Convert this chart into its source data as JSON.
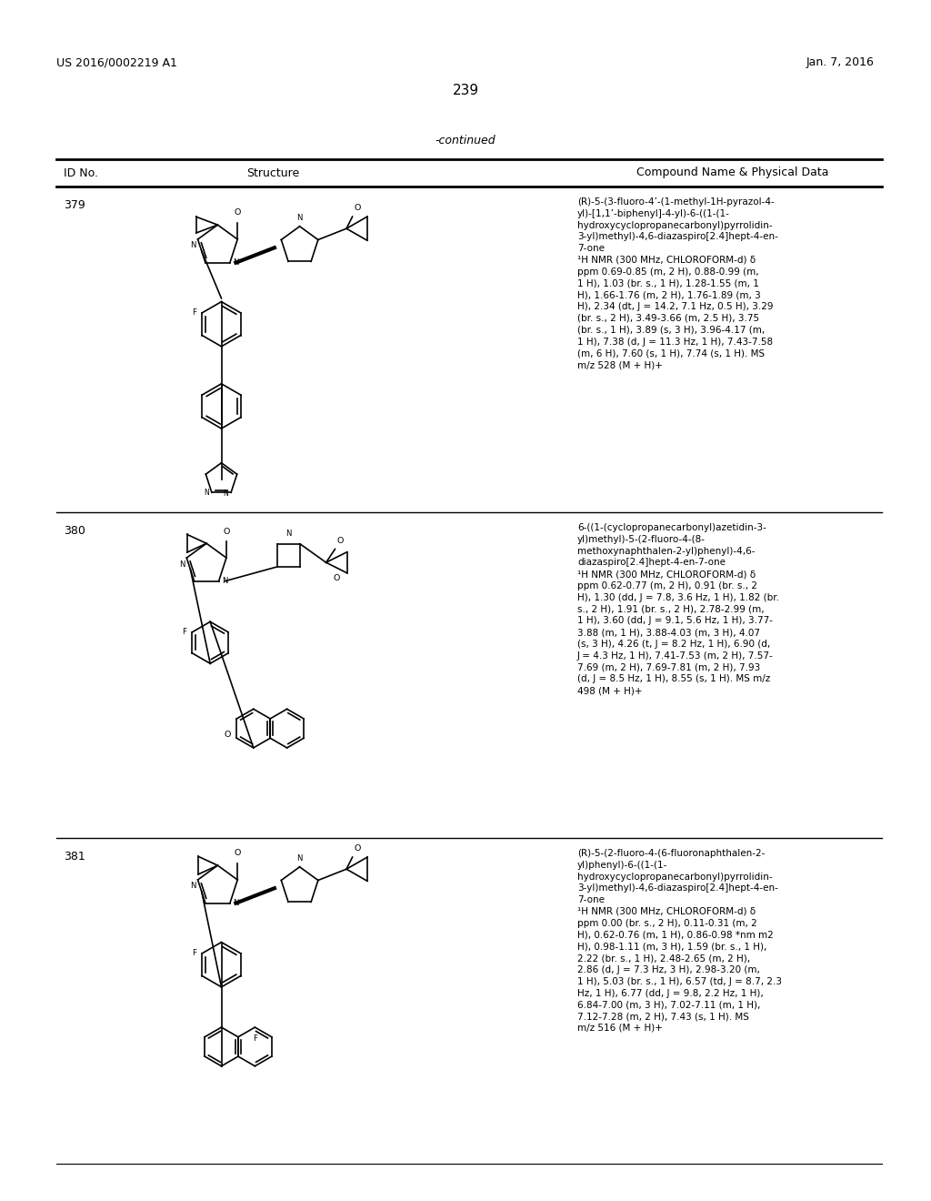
{
  "page_number": "239",
  "patent_number": "US 2016/0002219 A1",
  "patent_date": "Jan. 7, 2016",
  "continued_label": "-continued",
  "col_headers": [
    "ID No.",
    "Structure",
    "Compound Name & Physical Data"
  ],
  "rows": [
    {
      "id": "379",
      "compound_name": "(R)-5-(3-fluoro-4’-(1-methyl-1H-pyrazol-4-\nyl)-[1,1’-biphenyl]-4-yl)-6-((1-(1-\nhydroxycyclopropanecarbonyl)pyrrolidin-\n3-yl)methyl)-4,6-diazaspiro[2.4]hept-4-en-\n7-one",
      "nmr_data": "¹H NMR (300 MHz, CHLOROFORM-d) δ\nppm 0.69-0.85 (m, 2 H), 0.88-0.99 (m,\n1 H), 1.03 (br. s., 1 H), 1.28-1.55 (m, 1\nH), 1.66-1.76 (m, 2 H), 1.76-1.89 (m, 3\nH), 2.34 (dt, J = 14.2, 7.1 Hz, 0.5 H), 3.29\n(br. s., 2 H), 3.49-3.66 (m, 2.5 H), 3.75\n(br. s., 1 H), 3.89 (s, 3 H), 3.96-4.17 (m,\n1 H), 7.38 (d, J = 11.3 Hz, 1 H), 7.43-7.58\n(m, 6 H), 7.60 (s, 1 H), 7.74 (s, 1 H). MS\nm/z 528 (M + H)+"
    },
    {
      "id": "380",
      "compound_name": "6-((1-(cyclopropanecarbonyl)azetidin-3-\nyl)methyl)-5-(2-fluoro-4-(8-\nmethoxynaphthalen-2-yl)phenyl)-4,6-\ndiazaspiro[2.4]hept-4-en-7-one",
      "nmr_data": "¹H NMR (300 MHz, CHLOROFORM-d) δ\nppm 0.62-0.77 (m, 2 H), 0.91 (br. s., 2\nH), 1.30 (dd, J = 7.8, 3.6 Hz, 1 H), 1.82 (br.\ns., 2 H), 1.91 (br. s., 2 H), 2.78-2.99 (m,\n1 H), 3.60 (dd, J = 9.1, 5.6 Hz, 1 H), 3.77-\n3.88 (m, 1 H), 3.88-4.03 (m, 3 H), 4.07\n(s, 3 H), 4.26 (t, J = 8.2 Hz, 1 H), 6.90 (d,\nJ = 4.3 Hz, 1 H), 7.41-7.53 (m, 2 H), 7.57-\n7.69 (m, 2 H), 7.69-7.81 (m, 2 H), 7.93\n(d, J = 8.5 Hz, 1 H), 8.55 (s, 1 H). MS m/z\n498 (M + H)+"
    },
    {
      "id": "381",
      "compound_name": "(R)-5-(2-fluoro-4-(6-fluoronaphthalen-2-\nyl)phenyl)-6-((1-(1-\nhydroxycyclopropanecarbonyl)pyrrolidin-\n3-yl)methyl)-4,6-diazaspiro[2.4]hept-4-en-\n7-one",
      "nmr_data": "¹H NMR (300 MHz, CHLOROFORM-d) δ\nppm 0.00 (br. s., 2 H), 0.11-0.31 (m, 2\nH), 0.62-0.76 (m, 1 H), 0.86-0.98 *nm m2\nH), 0.98-1.11 (m, 3 H), 1.59 (br. s., 1 H),\n2.22 (br. s., 1 H), 2.48-2.65 (m, 2 H),\n2.86 (d, J = 7.3 Hz, 3 H), 2.98-3.20 (m,\n1 H), 5.03 (br. s., 1 H), 6.57 (td, J = 8.7, 2.3\nHz, 1 H), 6.77 (dd, J = 9.8, 2.2 Hz, 1 H),\n6.84-7.00 (m, 3 H), 7.02-7.11 (m, 1 H),\n7.12-7.28 (m, 2 H), 7.43 (s, 1 H). MS\nm/z 516 (M + H)+"
    }
  ],
  "bg_color": "#ffffff",
  "text_color": "#000000",
  "lw": 1.2,
  "font_size_header": 9,
  "font_size_body": 8.5,
  "font_size_page": 9,
  "font_size_struct": 7.5
}
